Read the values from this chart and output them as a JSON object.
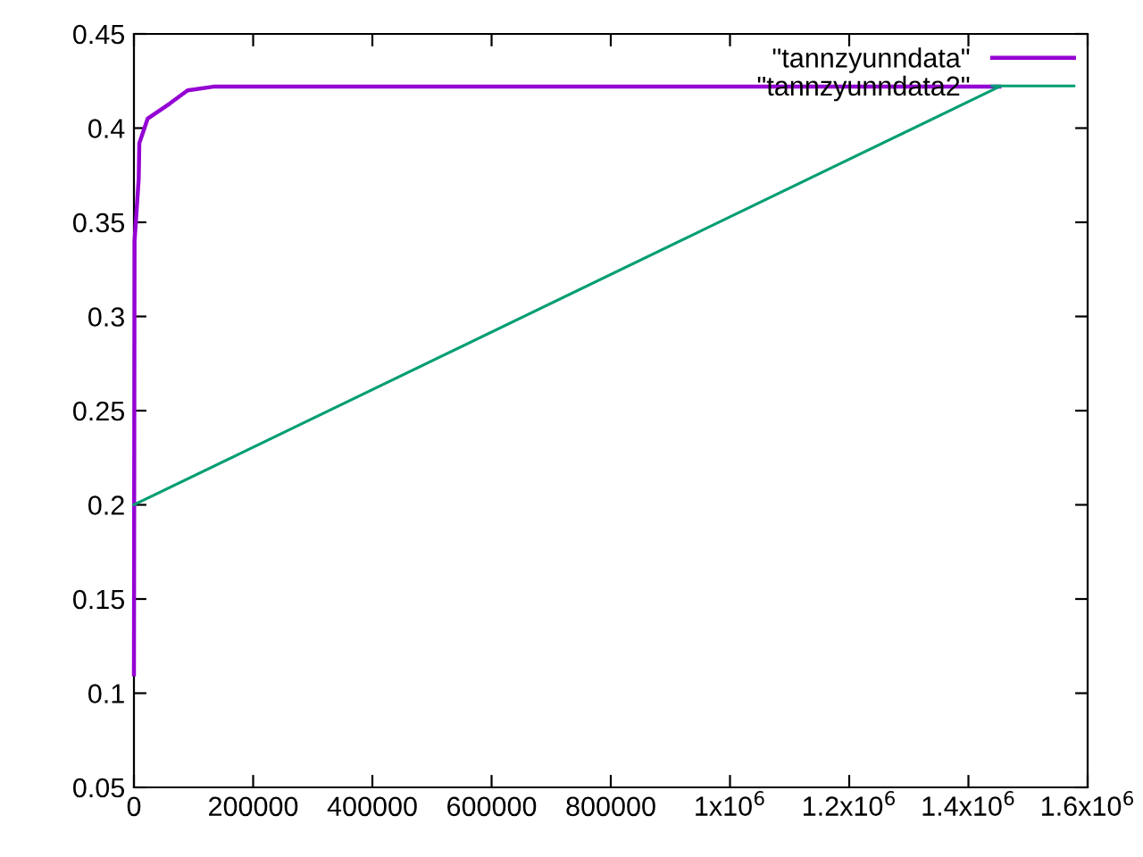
{
  "chart_data": {
    "type": "line",
    "series": [
      {
        "name": "\"tannzyunndata\"",
        "color": "#9400d3",
        "x": [
          0,
          1000,
          8000,
          9000,
          23000,
          60000,
          90000,
          133000,
          1452000
        ],
        "values": [
          0.11,
          0.34,
          0.373,
          0.392,
          0.405,
          0.413,
          0.42,
          0.422,
          0.422
        ]
      },
      {
        "name": "\"tannzyunndata2\"",
        "color": "#009e73",
        "x": [
          0,
          1452000
        ],
        "values": [
          0.2,
          0.422
        ]
      }
    ],
    "xlim": [
      0,
      1600000
    ],
    "ylim": [
      0.05,
      0.45
    ],
    "xticks": [
      0,
      200000,
      400000,
      600000,
      800000,
      {
        "value": 1000000,
        "label": "1x10$^{6}$"
      },
      {
        "value": 1200000,
        "label": "1.2x10$^{6}$"
      },
      {
        "value": 1400000,
        "label": "1.4x10$^{6}$"
      },
      {
        "value": 1600000,
        "label": "1.6x10$^{6}$"
      }
    ],
    "yticks": [
      0.05,
      0.1,
      0.15,
      0.2,
      0.25,
      0.3,
      0.35,
      0.4,
      0.45
    ],
    "grid": false,
    "legend": "top right",
    "marker": "none",
    "line_style": "solid"
  }
}
